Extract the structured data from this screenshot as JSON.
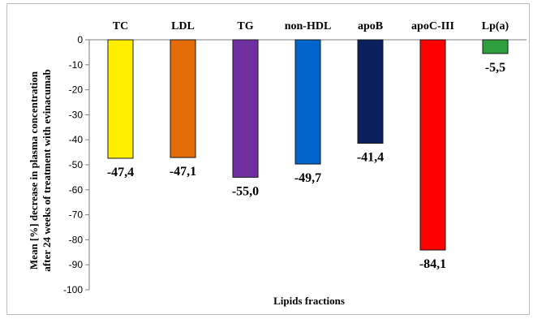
{
  "chart_data": {
    "type": "bar",
    "categories": [
      "TC",
      "LDL",
      "TG",
      "non-HDL",
      "apoB",
      "apoC-III",
      "Lp(a)"
    ],
    "values": [
      -47.4,
      -47.1,
      -55.0,
      -49.7,
      -41.4,
      -84.1,
      -5.5
    ],
    "value_labels": [
      "-47,4",
      "-47,1",
      "-55,0",
      "-49,7",
      "-41,4",
      "-84,1",
      "-5,5"
    ],
    "colors": [
      "#FFEE00",
      "#E36C09",
      "#7030A0",
      "#0066CC",
      "#0A1F5C",
      "#FF0000",
      "#2E9E3E"
    ],
    "xlabel": "Lipids fractions",
    "ylabel_line1": "Mean [%] decrease in plasma concentration",
    "ylabel_line2": "after 24 weeks of treatment with evinacumab",
    "ylim": [
      -100,
      0
    ],
    "yticks": [
      0,
      -10,
      -20,
      -30,
      -40,
      -50,
      -60,
      -70,
      -80,
      -90,
      -100
    ],
    "category_axis_position": "top",
    "grid": false,
    "legend": "none"
  }
}
